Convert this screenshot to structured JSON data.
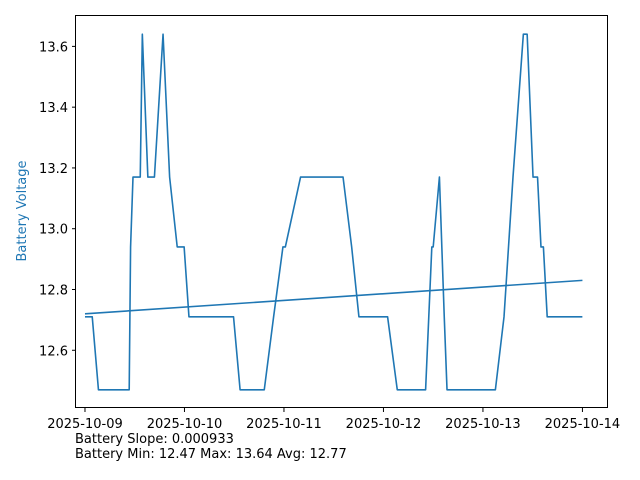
{
  "chart_data": {
    "type": "line",
    "ylabel": "Battery Voltage",
    "ylabel_color": "#1f77b4",
    "line_color": "#1f77b4",
    "x_ticks": [
      "2025-10-09",
      "2025-10-10",
      "2025-10-11",
      "2025-10-12",
      "2025-10-13",
      "2025-10-14"
    ],
    "y_ticks": [
      "12.6",
      "12.8",
      "13.0",
      "13.2",
      "13.4",
      "13.6"
    ],
    "xlim": [
      "2025-10-08 21:50",
      "2025-10-14 06:10"
    ],
    "ylim": [
      12.41,
      13.7
    ],
    "grid": false,
    "series": [
      {
        "name": "",
        "x": [
          "2025-10-09 00:00",
          "2025-10-09 01:45",
          "2025-10-09 03:15",
          "2025-10-09 05:35",
          "2025-10-09 07:00",
          "2025-10-09 07:15",
          "2025-10-09 07:55",
          "2025-10-09 08:15",
          "2025-10-09 09:10",
          "2025-10-09 09:55",
          "2025-10-09 10:40",
          "2025-10-09 11:00",
          "2025-10-09 11:35",
          "2025-10-09 13:20",
          "2025-10-09 13:50",
          "2025-10-09 15:10",
          "2025-10-09 16:45",
          "2025-10-09 18:50",
          "2025-10-09 20:25",
          "2025-10-09 22:15",
          "2025-10-09 23:55",
          "2025-10-10 01:05",
          "2025-10-10 03:15",
          "2025-10-10 05:50",
          "2025-10-10 07:00",
          "2025-10-10 08:05",
          "2025-10-10 08:40",
          "2025-10-10 09:25",
          "2025-10-10 10:15",
          "2025-10-10 11:50",
          "2025-10-10 13:25",
          "2025-10-10 14:45",
          "2025-10-10 16:10",
          "2025-10-10 17:40",
          "2025-10-10 19:15",
          "2025-10-10 21:30",
          "2025-10-10 23:45",
          "2025-10-11 00:20",
          "2025-10-11 04:00",
          "2025-10-11 06:50",
          "2025-10-11 09:25",
          "2025-10-11 10:55",
          "2025-10-11 11:40",
          "2025-10-11 13:15",
          "2025-10-11 14:15",
          "2025-10-11 16:20",
          "2025-10-11 18:05",
          "2025-10-11 20:00",
          "2025-10-11 22:30",
          "2025-10-12 01:00",
          "2025-10-12 03:20",
          "2025-10-12 05:35",
          "2025-10-12 08:35",
          "2025-10-12 10:10",
          "2025-10-12 11:40",
          "2025-10-12 12:00",
          "2025-10-12 13:30",
          "2025-10-12 14:40",
          "2025-10-12 15:20",
          "2025-10-12 16:35",
          "2025-10-12 17:15",
          "2025-10-12 18:30",
          "2025-10-12 21:00",
          "2025-10-12 23:30",
          "2025-10-13 03:00",
          "2025-10-13 05:05",
          "2025-10-13 07:15",
          "2025-10-13 09:45",
          "2025-10-13 10:40",
          "2025-10-13 12:05",
          "2025-10-13 13:10",
          "2025-10-13 14:00",
          "2025-10-13 14:35",
          "2025-10-13 15:30",
          "2025-10-13 17:05",
          "2025-10-13 18:30",
          "2025-10-13 19:30",
          "2025-10-13 20:15",
          "2025-10-13 21:45",
          "2025-10-13 23:59"
        ],
        "values": [
          12.71,
          12.71,
          12.47,
          12.47,
          12.47,
          12.47,
          12.47,
          12.47,
          12.47,
          12.47,
          12.47,
          12.94,
          13.17,
          13.17,
          13.64,
          13.17,
          13.17,
          13.64,
          13.17,
          12.94,
          12.94,
          12.71,
          12.71,
          12.71,
          12.71,
          12.71,
          12.71,
          12.71,
          12.71,
          12.71,
          12.47,
          12.47,
          12.47,
          12.47,
          12.47,
          12.71,
          12.94,
          12.94,
          13.17,
          13.17,
          13.17,
          13.17,
          13.17,
          13.17,
          13.17,
          12.94,
          12.71,
          12.71,
          12.71,
          12.71,
          12.47,
          12.47,
          12.47,
          12.47,
          12.94,
          12.94,
          13.17,
          12.71,
          12.47,
          12.47,
          12.47,
          12.47,
          12.47,
          12.47,
          12.47,
          12.71,
          13.17,
          13.64,
          13.64,
          13.17,
          13.17,
          12.94,
          12.94,
          12.71,
          12.71,
          12.71,
          12.71,
          12.71,
          12.71,
          12.71
        ]
      },
      {
        "name": "",
        "x": [
          "2025-10-09 00:00",
          "2025-10-14 00:00"
        ],
        "values": [
          12.72,
          12.83
        ]
      }
    ]
  },
  "stats": {
    "slope_line": "Battery Slope: 0.000933",
    "minmax_line": "Battery Min: 12.47 Max: 13.64 Avg: 12.77"
  }
}
